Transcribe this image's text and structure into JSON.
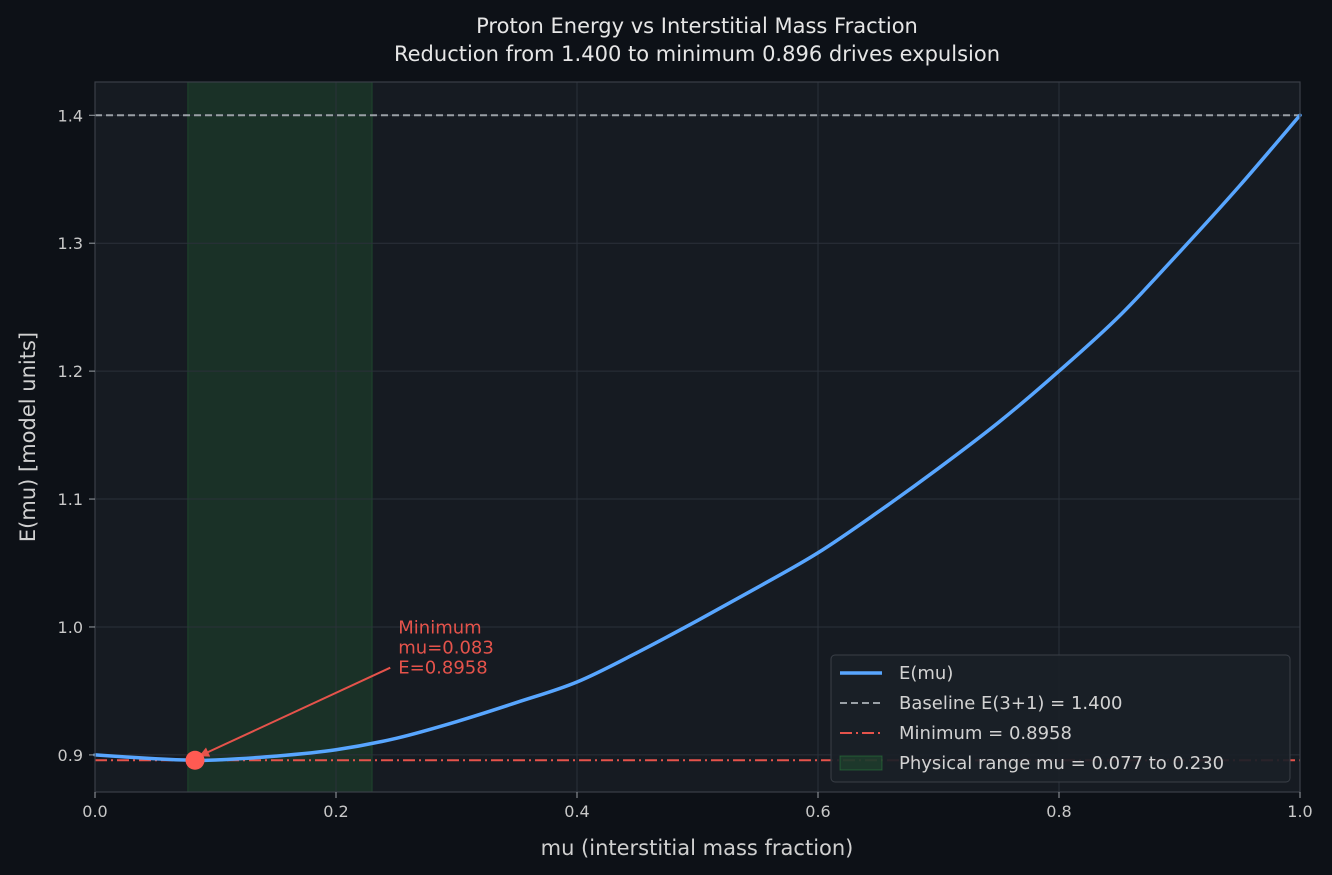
{
  "chart_data": {
    "type": "line",
    "title": "Proton Energy vs Interstitial Mass Fraction",
    "subtitle": "Reduction from 1.400 to minimum 0.896 drives expulsion",
    "xlabel": "mu  (interstitial mass fraction)",
    "ylabel": "E(mu)  [model units]",
    "xlim": [
      0.0,
      1.0
    ],
    "ylim": [
      0.871,
      1.426
    ],
    "x_ticks": [
      0.0,
      0.2,
      0.4,
      0.6,
      0.8,
      1.0
    ],
    "x_tick_labels": [
      "0.0",
      "0.2",
      "0.4",
      "0.6",
      "0.8",
      "1.0"
    ],
    "y_ticks": [
      0.9,
      1.0,
      1.1,
      1.2,
      1.3,
      1.4
    ],
    "y_tick_labels": [
      "0.9",
      "1.0",
      "1.1",
      "1.2",
      "1.3",
      "1.4"
    ],
    "grid": true,
    "legend_position": "bottom-right",
    "series": [
      {
        "name": "E(mu)",
        "color": "#58a6ff",
        "style": "solid",
        "x": [
          0.0,
          0.05,
          0.083,
          0.1,
          0.15,
          0.2,
          0.25,
          0.3,
          0.35,
          0.4,
          0.45,
          0.5,
          0.55,
          0.6,
          0.65,
          0.7,
          0.75,
          0.8,
          0.85,
          0.9,
          0.95,
          1.0
        ],
        "y": [
          0.9,
          0.897,
          0.8958,
          0.896,
          0.899,
          0.904,
          0.913,
          0.926,
          0.941,
          0.957,
          0.98,
          1.005,
          1.031,
          1.058,
          1.09,
          1.124,
          1.16,
          1.2,
          1.243,
          1.293,
          1.345,
          1.4
        ]
      },
      {
        "name": "Baseline E(3+1) = 1.400",
        "color": "#9aa0a6",
        "style": "dashed",
        "y_constant": 1.4
      },
      {
        "name": "Minimum = 0.8958",
        "color": "#e5534b",
        "style": "dashdot",
        "y_constant": 0.8958
      }
    ],
    "shaded_region": {
      "name": "Physical range  mu = 0.077 to 0.230",
      "x_start": 0.077,
      "x_end": 0.23,
      "color": "#2ea043"
    },
    "minimum_point": {
      "x": 0.083,
      "y": 0.8958,
      "color": "#ff5a52"
    },
    "annotation": {
      "lines": [
        "Minimum",
        "mu=0.083",
        "E=0.8958"
      ],
      "text_x": 0.25,
      "text_y": 0.976,
      "color": "#e5534b"
    },
    "colors": {
      "background": "#0d1117",
      "plot_background": "#161b22",
      "grid": "#2b313a",
      "axes": "#3a3f47"
    }
  }
}
